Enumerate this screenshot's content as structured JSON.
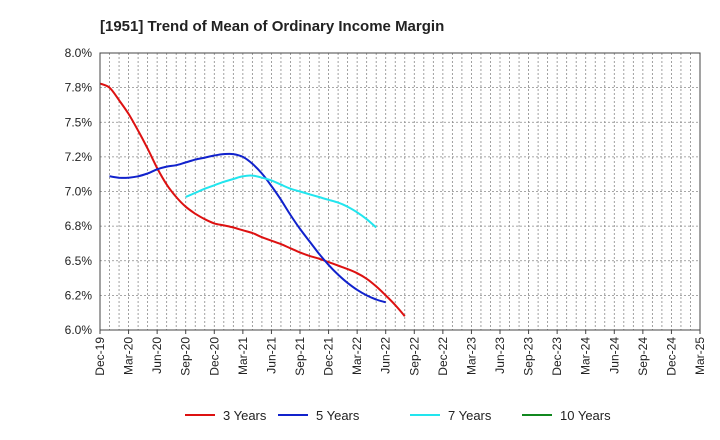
{
  "chart_data": {
    "type": "line",
    "title": "[1951]  Trend of Mean of Ordinary Income Margin",
    "xlabel": "",
    "ylabel": "",
    "ylim": [
      6.0,
      8.0
    ],
    "y_ticks": [
      "8.0%",
      "7.8%",
      "7.5%",
      "7.2%",
      "7.0%",
      "6.8%",
      "6.5%",
      "6.2%",
      "6.0%"
    ],
    "x_ticks": [
      "Dec-19",
      "Mar-20",
      "Jun-20",
      "Sep-20",
      "Dec-20",
      "Mar-21",
      "Jun-21",
      "Sep-21",
      "Dec-21",
      "Mar-22",
      "Jun-22",
      "Sep-22",
      "Dec-22",
      "Mar-23",
      "Jun-23",
      "Sep-23",
      "Dec-23",
      "Mar-24",
      "Jun-24",
      "Sep-24",
      "Dec-24",
      "Mar-25"
    ],
    "grid": true,
    "legend_position": "bottom",
    "series": [
      {
        "name": "3 Years",
        "color": "#dd1111",
        "start_index": 0,
        "values": [
          7.78,
          7.75,
          7.66,
          7.56,
          7.44,
          7.31,
          7.17,
          7.05,
          6.96,
          6.89,
          6.84,
          6.8,
          6.77,
          6.755,
          6.74,
          6.72,
          6.7,
          6.67,
          6.645,
          6.62,
          6.59,
          6.56,
          6.535,
          6.515,
          6.49,
          6.465,
          6.44,
          6.41,
          6.37,
          6.315,
          6.25,
          6.18,
          6.1
        ]
      },
      {
        "name": "5 Years",
        "color": "#1122cc",
        "start_index": 1,
        "values": [
          7.11,
          7.1,
          7.1,
          7.11,
          7.13,
          7.16,
          7.18,
          7.19,
          7.21,
          7.23,
          7.245,
          7.26,
          7.27,
          7.27,
          7.25,
          7.2,
          7.13,
          7.04,
          6.94,
          6.83,
          6.73,
          6.64,
          6.55,
          6.47,
          6.4,
          6.34,
          6.29,
          6.25,
          6.22,
          6.2
        ]
      },
      {
        "name": "7 Years",
        "color": "#22e5ee",
        "start_index": 9,
        "values": [
          6.96,
          6.99,
          7.02,
          7.045,
          7.07,
          7.09,
          7.11,
          7.115,
          7.1,
          7.08,
          7.05,
          7.02,
          7.0,
          6.98,
          6.96,
          6.94,
          6.92,
          6.89,
          6.85,
          6.8,
          6.74
        ]
      },
      {
        "name": "10 Years",
        "color": "#11881f",
        "start_index": 0,
        "values": []
      }
    ]
  }
}
